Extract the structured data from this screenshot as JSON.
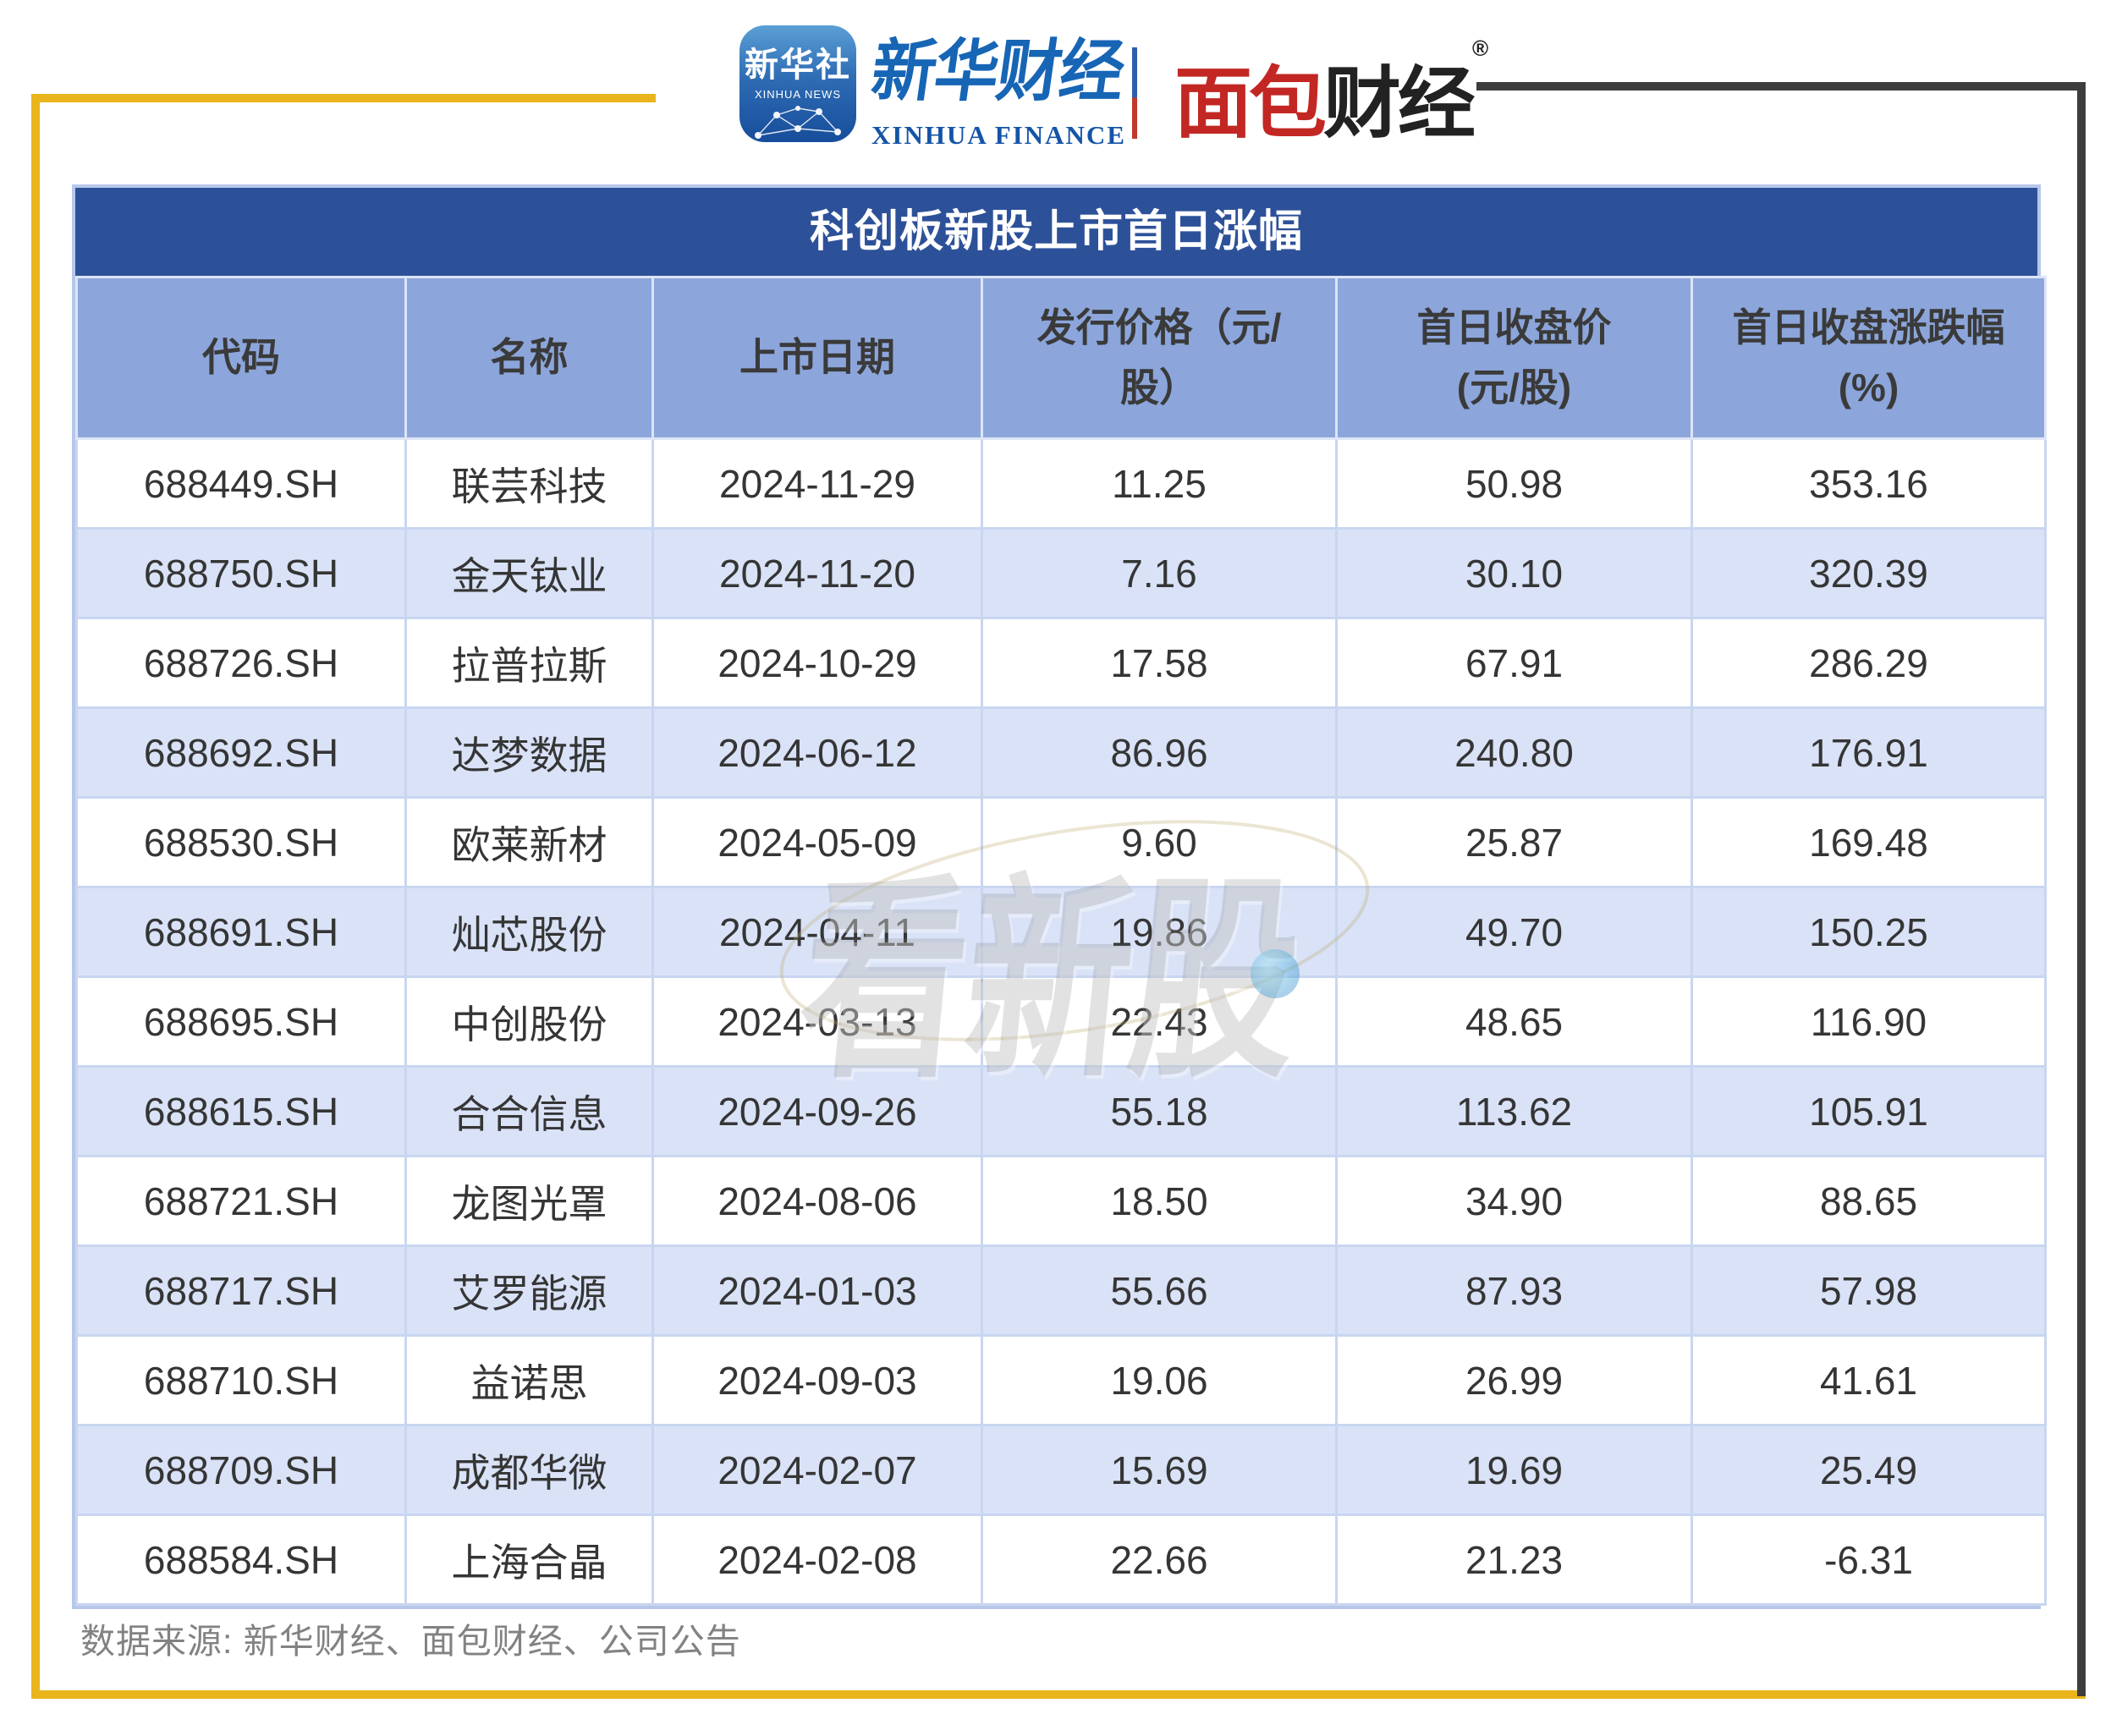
{
  "brand": {
    "xinhua_icon": {
      "cn": "新华社",
      "en": "XINHUA NEWS"
    },
    "xinhua_finance": {
      "cn": "新华财经",
      "en": "XINHUA FINANCE"
    },
    "mianbao_finance": {
      "part_red": "面包",
      "part_black": "财经",
      "reg_mark": "®"
    }
  },
  "chart_data": {
    "type": "table",
    "title": "科创板新股上市首日涨幅",
    "columns": [
      "代码",
      "名称",
      "上市日期",
      "发行价格（元/\n股）",
      "首日收盘价\n(元/股)",
      "首日收盘涨跌幅\n(%)"
    ],
    "rows": [
      [
        "688449.SH",
        "联芸科技",
        "2024-11-29",
        "11.25",
        "50.98",
        "353.16"
      ],
      [
        "688750.SH",
        "金天钛业",
        "2024-11-20",
        "7.16",
        "30.10",
        "320.39"
      ],
      [
        "688726.SH",
        "拉普拉斯",
        "2024-10-29",
        "17.58",
        "67.91",
        "286.29"
      ],
      [
        "688692.SH",
        "达梦数据",
        "2024-06-12",
        "86.96",
        "240.80",
        "176.91"
      ],
      [
        "688530.SH",
        "欧莱新材",
        "2024-05-09",
        "9.60",
        "25.87",
        "169.48"
      ],
      [
        "688691.SH",
        "灿芯股份",
        "2024-04-11",
        "19.86",
        "49.70",
        "150.25"
      ],
      [
        "688695.SH",
        "中创股份",
        "2024-03-13",
        "22.43",
        "48.65",
        "116.90"
      ],
      [
        "688615.SH",
        "合合信息",
        "2024-09-26",
        "55.18",
        "113.62",
        "105.91"
      ],
      [
        "688721.SH",
        "龙图光罩",
        "2024-08-06",
        "18.50",
        "34.90",
        "88.65"
      ],
      [
        "688717.SH",
        "艾罗能源",
        "2024-01-03",
        "55.66",
        "87.93",
        "57.98"
      ],
      [
        "688710.SH",
        "益诺思",
        "2024-09-03",
        "19.06",
        "26.99",
        "41.61"
      ],
      [
        "688709.SH",
        "成都华微",
        "2024-02-07",
        "15.69",
        "19.69",
        "25.49"
      ],
      [
        "688584.SH",
        "上海合晶",
        "2024-02-08",
        "22.66",
        "21.23",
        "-6.31"
      ]
    ]
  },
  "watermark": {
    "text": "看新股"
  },
  "footer": {
    "source": "数据来源: 新华财经、面包财经、公司公告"
  },
  "colors": {
    "accent_yellow": "#E9B41C",
    "frame_dark": "#3D3D3D",
    "title_bg": "#2D5199",
    "header_bg": "#8CA6DB",
    "row_alt": "#D9E2F7",
    "grid_line": "#C9D6F0",
    "brand_blue": "#1765B5",
    "brand_red": "#C32723"
  }
}
